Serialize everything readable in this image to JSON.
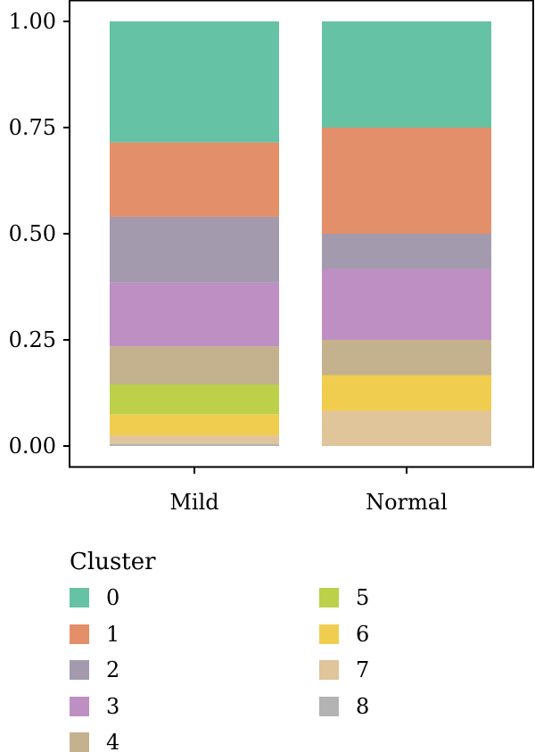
{
  "chart_data": {
    "type": "bar",
    "stacked": true,
    "categories": [
      "Mild",
      "Normal"
    ],
    "ylim": [
      0,
      1
    ],
    "yticks": [
      "0.00",
      "0.25",
      "0.50",
      "0.75",
      "1.00"
    ],
    "ytick_values": [
      0,
      0.25,
      0.5,
      0.75,
      1.0
    ],
    "xlabel": "",
    "ylabel": "",
    "grid": false,
    "legend_title": "Cluster",
    "legend_position": "bottom",
    "series": [
      {
        "name": "0",
        "color": "#66c2a5",
        "values": [
          0.285,
          0.25
        ]
      },
      {
        "name": "1",
        "color": "#e38f69",
        "values": [
          0.175,
          0.25
        ]
      },
      {
        "name": "2",
        "color": "#a49aae",
        "values": [
          0.155,
          0.083
        ]
      },
      {
        "name": "3",
        "color": "#be8fc2",
        "values": [
          0.15,
          0.167
        ]
      },
      {
        "name": "4",
        "color": "#c4b18d",
        "values": [
          0.09,
          0.083
        ]
      },
      {
        "name": "5",
        "color": "#bcd04a",
        "values": [
          0.07,
          0.0
        ]
      },
      {
        "name": "6",
        "color": "#f0cd4e",
        "values": [
          0.05,
          0.084
        ]
      },
      {
        "name": "7",
        "color": "#e0c49a",
        "values": [
          0.02,
          0.083
        ]
      },
      {
        "name": "8",
        "color": "#b3b3b3",
        "values": [
          0.005,
          0.0
        ]
      }
    ]
  }
}
